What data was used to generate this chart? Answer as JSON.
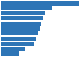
{
  "values": [
    26,
    17,
    15,
    14,
    13.5,
    13,
    12.5,
    12,
    11,
    8,
    6
  ],
  "bar_color": "#2e75b6",
  "background_color": "#ffffff",
  "grid_color": "#d9d9d9",
  "figsize": [
    1.0,
    0.71
  ],
  "dpi": 100
}
